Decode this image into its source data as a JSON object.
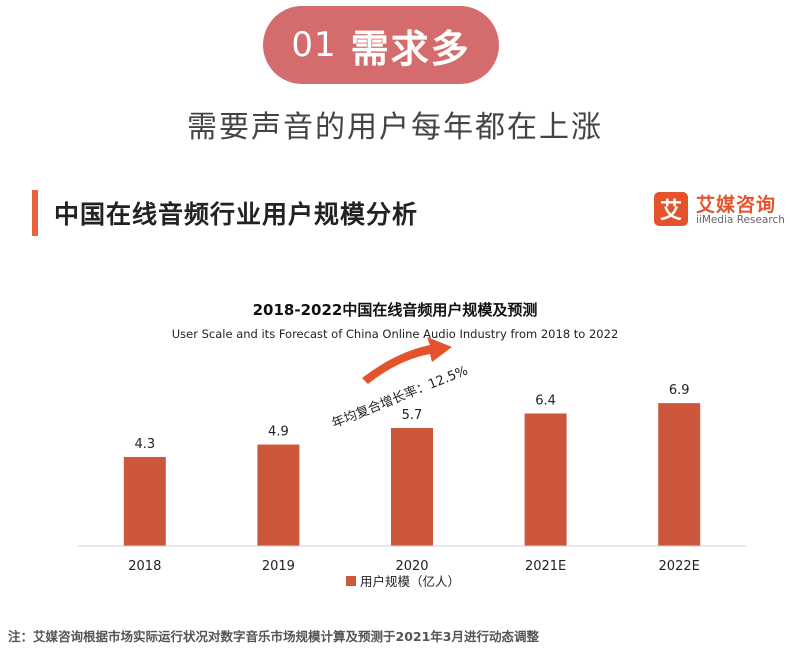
{
  "header": {
    "pill_number": "01",
    "pill_text": "需求多",
    "subtitle": "需要声音的用户每年都在上涨"
  },
  "section": {
    "title": "中国在线音频行业用户规模分析"
  },
  "logo": {
    "mark": "艾",
    "name_cn": "艾媒咨询",
    "name_en": "iiMedia Research"
  },
  "chart_data": {
    "type": "bar",
    "title": "2018-2022中国在线音频用户规模及预测",
    "subtitle": "User Scale and its Forecast of China Online Audio Industry from 2018 to 2022",
    "categories": [
      "2018",
      "2019",
      "2020",
      "2021E",
      "2022E"
    ],
    "series": [
      {
        "name": "用户规模（亿人）",
        "values": [
          4.3,
          4.9,
          5.7,
          6.4,
          6.9
        ]
      }
    ],
    "ylim": [
      0,
      8.5
    ],
    "grid": false,
    "legend": "bottom-center",
    "annotation": "年均复合增长率：12.5%",
    "bar_color": "#cc573c"
  },
  "footnote": "注：艾媒咨询根据市场实际运行状况对数字音乐市场规模计算及预测于2021年3月进行动态调整",
  "colors": {
    "pill": "#d46b6c",
    "accent": "#e8623b",
    "bar": "#cc573c",
    "arrow": "#e5532c"
  }
}
